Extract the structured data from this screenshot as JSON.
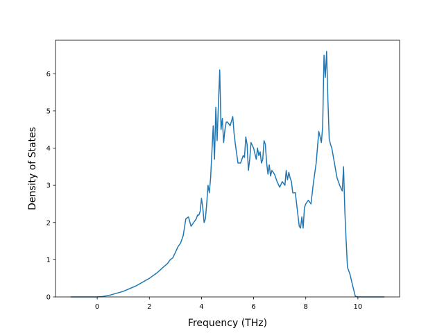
{
  "chart_data": {
    "type": "line",
    "title": "",
    "xlabel": "Frequency (THz)",
    "ylabel": "Density of States",
    "xlim": [
      -1.6,
      11.6
    ],
    "ylim": [
      0,
      6.9
    ],
    "xticks": [
      0,
      2,
      4,
      6,
      8,
      10
    ],
    "yticks": [
      0,
      1,
      2,
      3,
      4,
      5,
      6
    ],
    "grid": false,
    "series": [
      {
        "color": "#1f77b4",
        "x": [
          -1.0,
          0.0,
          0.2,
          0.5,
          1.0,
          1.5,
          2.0,
          2.3,
          2.5,
          2.7,
          2.8,
          2.9,
          3.0,
          3.1,
          3.2,
          3.25,
          3.3,
          3.4,
          3.5,
          3.6,
          3.7,
          3.8,
          3.85,
          3.9,
          3.95,
          4.0,
          4.05,
          4.1,
          4.15,
          4.2,
          4.25,
          4.3,
          4.35,
          4.4,
          4.45,
          4.5,
          4.55,
          4.6,
          4.65,
          4.7,
          4.75,
          4.8,
          4.85,
          4.9,
          4.95,
          5.0,
          5.1,
          5.2,
          5.25,
          5.3,
          5.4,
          5.5,
          5.6,
          5.65,
          5.7,
          5.75,
          5.8,
          5.85,
          5.9,
          6.0,
          6.1,
          6.15,
          6.2,
          6.25,
          6.3,
          6.35,
          6.4,
          6.45,
          6.5,
          6.55,
          6.6,
          6.65,
          6.7,
          6.75,
          6.8,
          6.85,
          6.9,
          7.0,
          7.1,
          7.2,
          7.25,
          7.3,
          7.35,
          7.4,
          7.45,
          7.5,
          7.55,
          7.6,
          7.7,
          7.75,
          7.8,
          7.85,
          7.9,
          7.95,
          8.0,
          8.1,
          8.2,
          8.3,
          8.4,
          8.5,
          8.6,
          8.65,
          8.7,
          8.75,
          8.8,
          8.85,
          8.9,
          8.95,
          9.0,
          9.1,
          9.2,
          9.3,
          9.4,
          9.45,
          9.5,
          9.55,
          9.6,
          9.7,
          9.8,
          9.9,
          10.0,
          11.0
        ],
        "y": [
          0.0,
          0.0,
          0.01,
          0.05,
          0.15,
          0.3,
          0.5,
          0.65,
          0.78,
          0.9,
          1.0,
          1.05,
          1.2,
          1.35,
          1.45,
          1.55,
          1.65,
          2.1,
          2.15,
          1.9,
          2.0,
          2.1,
          2.2,
          2.2,
          2.3,
          2.65,
          2.4,
          2.0,
          2.1,
          2.5,
          3.0,
          2.8,
          3.2,
          3.9,
          4.6,
          3.7,
          5.1,
          4.2,
          5.2,
          6.1,
          4.5,
          4.8,
          4.15,
          4.5,
          4.7,
          4.7,
          4.6,
          4.85,
          4.4,
          4.1,
          3.6,
          3.6,
          3.8,
          3.75,
          4.3,
          4.1,
          3.4,
          3.7,
          4.15,
          4.0,
          3.7,
          4.0,
          3.8,
          3.9,
          3.6,
          3.7,
          4.2,
          4.1,
          3.6,
          3.3,
          3.55,
          3.25,
          3.4,
          3.35,
          3.3,
          3.2,
          3.1,
          2.95,
          3.1,
          3.0,
          3.4,
          3.15,
          3.35,
          3.2,
          3.1,
          2.8,
          2.8,
          2.8,
          2.2,
          1.9,
          1.85,
          2.15,
          1.85,
          2.4,
          2.5,
          2.6,
          2.5,
          3.1,
          3.6,
          4.45,
          4.15,
          4.6,
          6.5,
          5.9,
          6.6,
          5.3,
          4.25,
          4.1,
          4.0,
          3.6,
          3.2,
          3.0,
          2.85,
          3.5,
          2.3,
          1.5,
          0.8,
          0.6,
          0.3,
          0.02,
          0.0,
          0.0
        ]
      }
    ]
  }
}
